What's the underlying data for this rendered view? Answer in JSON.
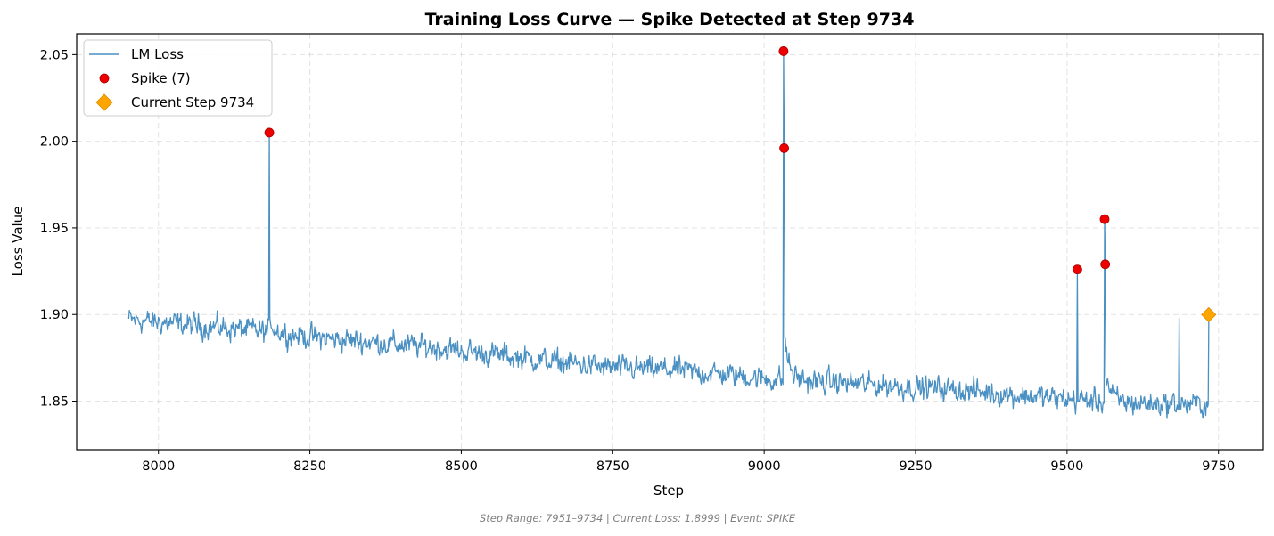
{
  "chart_data": {
    "type": "line",
    "title": "Training Loss Curve — Spike Detected at Step 9734",
    "xlabel": "Step",
    "ylabel": "Loss Value",
    "xlim": [
      7865,
      9824
    ],
    "ylim": [
      1.822,
      2.062
    ],
    "xticks": [
      8000,
      8250,
      8500,
      8750,
      9000,
      9250,
      9500,
      9750
    ],
    "yticks": [
      1.85,
      1.9,
      1.95,
      2.0,
      2.05
    ],
    "xtick_labels": [
      "8000",
      "8250",
      "8500",
      "8750",
      "9000",
      "9250",
      "9500",
      "9750"
    ],
    "ytick_labels": [
      "1.85",
      "1.90",
      "1.95",
      "2.00",
      "2.05"
    ],
    "grid": true,
    "legend_position": "top-left",
    "legend": [
      {
        "label": "LM Loss",
        "marker": "line",
        "color": "#4a90c2"
      },
      {
        "label": "Spike (7)",
        "marker": "circle",
        "color": "#ee0000"
      },
      {
        "label": "Current Step 9734",
        "marker": "diamond",
        "color": "#ffa500"
      }
    ],
    "series": [
      {
        "name": "LM Loss",
        "color": "#4a90c2",
        "x_range": [
          7951,
          9734
        ],
        "trend": [
          [
            7951,
            1.897
          ],
          [
            8050,
            1.894
          ],
          [
            8150,
            1.891
          ],
          [
            8250,
            1.887
          ],
          [
            8350,
            1.884
          ],
          [
            8450,
            1.881
          ],
          [
            8550,
            1.877
          ],
          [
            8650,
            1.873
          ],
          [
            8750,
            1.869
          ],
          [
            8850,
            1.868
          ],
          [
            8950,
            1.865
          ],
          [
            9000,
            1.863
          ],
          [
            9100,
            1.861
          ],
          [
            9200,
            1.859
          ],
          [
            9300,
            1.857
          ],
          [
            9400,
            1.854
          ],
          [
            9500,
            1.851
          ],
          [
            9600,
            1.849
          ],
          [
            9734,
            1.848
          ]
        ],
        "noise_amplitude": 0.0055,
        "events": [
          {
            "x": 8183,
            "y": 2.005
          },
          {
            "x": 9032,
            "y": 2.052
          },
          {
            "x": 9033,
            "y": 1.996
          },
          {
            "x": 9517,
            "y": 1.926
          },
          {
            "x": 9562,
            "y": 1.955
          },
          {
            "x": 9563,
            "y": 1.929
          },
          {
            "x": 9685,
            "y": 1.898
          },
          {
            "x": 9734,
            "y": 1.8999
          }
        ]
      }
    ],
    "spikes": {
      "name": "Spike (7)",
      "color": "#ee0000",
      "points": [
        {
          "x": 8183,
          "y": 2.005
        },
        {
          "x": 9032,
          "y": 2.052
        },
        {
          "x": 9033,
          "y": 1.996
        },
        {
          "x": 9517,
          "y": 1.926
        },
        {
          "x": 9562,
          "y": 1.955
        },
        {
          "x": 9563,
          "y": 1.929
        }
      ]
    },
    "current": {
      "name": "Current Step 9734",
      "color": "#ffa500",
      "x": 9734,
      "y": 1.8999
    },
    "footer": "Step Range: 7951–9734 | Current Loss: 1.8999 | Event: SPIKE"
  }
}
